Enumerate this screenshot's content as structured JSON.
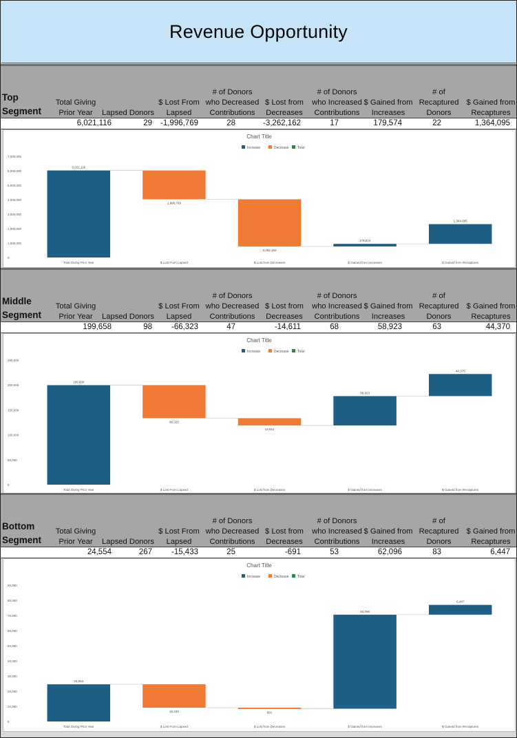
{
  "title": "Revenue Opportunity",
  "columns": [
    "Total Giving\nPrior Year",
    "Lapsed Donors",
    "$ Lost From\nLapsed",
    "# of Donors\nwho Decreased\nContributions",
    "$ Lost from\nDecreases",
    "# of Donors\nwho Increased\nContributions",
    "$ Gained from\nIncreases",
    "# of\nRecaptured\nDonors",
    "$ Gained from\nRecaptures"
  ],
  "segments": [
    {
      "name": "Top\nSegment",
      "values": [
        "6,021,116",
        "29",
        "-1,996,769",
        "28",
        "-3,262,162",
        "17",
        "179,574",
        "22",
        "1,364,095"
      ]
    },
    {
      "name": "Middle\nSegment",
      "values": [
        "199,658",
        "98",
        "-66,323",
        "47",
        "-14,611",
        "68",
        "58,923",
        "63",
        "44,370"
      ]
    },
    {
      "name": "Bottom\nSegment",
      "values": [
        "24,554",
        "267",
        "-15,433",
        "25",
        "-691",
        "53",
        "62,096",
        "83",
        "6,447"
      ]
    }
  ],
  "colors": {
    "increase": "#1f5f84",
    "decrease": "#ef7b34",
    "total": "#2e8b3e",
    "title_bg": "#c5e4f7",
    "header_bg": "#a6a6a6"
  },
  "chart_data": [
    {
      "type": "waterfall",
      "title": "Chart Title",
      "legend": [
        "Increase",
        "Decrease",
        "Total"
      ],
      "legend_position": "top",
      "categories": [
        "Total Giving Prior Year",
        "$ Lost From Lapsed",
        "$ Lost from Decreases",
        "$ Gained from Increases",
        "$ Gained from Recaptures"
      ],
      "values": [
        6021116,
        -1996769,
        -3262162,
        179574,
        1364095
      ],
      "kinds": [
        "increase",
        "decrease",
        "decrease",
        "increase",
        "increase"
      ],
      "data_labels": [
        "6,021,116",
        "1,996,769",
        "3,262,162",
        "179,574",
        "1,364,095"
      ],
      "yticks": [
        "0",
        "1,000,000",
        "2,000,000",
        "3,000,000",
        "4,000,000",
        "5,000,000",
        "6,000,000",
        "7,000,000"
      ],
      "ylim": [
        0,
        7000000
      ],
      "grid": false
    },
    {
      "type": "waterfall",
      "title": "Chart Title",
      "legend": [
        "Increase",
        "Decrease",
        "Total"
      ],
      "legend_position": "top",
      "categories": [
        "Total Giving Prior Year",
        "$ Lost From Lapsed",
        "$ Lost from Decreases",
        "$ Gained from Increases",
        "$ Gained from Recaptures"
      ],
      "values": [
        199658,
        -66323,
        -14611,
        58923,
        44370
      ],
      "kinds": [
        "increase",
        "decrease",
        "decrease",
        "increase",
        "increase"
      ],
      "data_labels": [
        "199,658",
        "66,323",
        "14,611",
        "58,923",
        "44,370"
      ],
      "yticks": [
        "0",
        "50,000",
        "100,000",
        "150,000",
        "200,000",
        "250,000"
      ],
      "ylim": [
        0,
        250000
      ],
      "grid": false
    },
    {
      "type": "waterfall",
      "title": "Chart Title",
      "legend": [
        "Increase",
        "Decrease",
        "Total"
      ],
      "legend_position": "top",
      "categories": [
        "Total Giving Prior Year",
        "$ Lost From Lapsed",
        "$ Lost from Decreases",
        "$ Gained from Increases",
        "$ Gained from Recaptures"
      ],
      "values": [
        24554,
        -15433,
        -691,
        62096,
        6447
      ],
      "kinds": [
        "increase",
        "decrease",
        "decrease",
        "increase",
        "increase"
      ],
      "data_labels": [
        "24,554",
        "15,433",
        "691",
        "62,096",
        "6,447"
      ],
      "yticks": [
        "0",
        "10,000",
        "20,000",
        "30,000",
        "40,000",
        "50,000",
        "60,000",
        "70,000",
        "80,000",
        "90,000"
      ],
      "ylim": [
        0,
        90000
      ],
      "grid": false
    }
  ]
}
